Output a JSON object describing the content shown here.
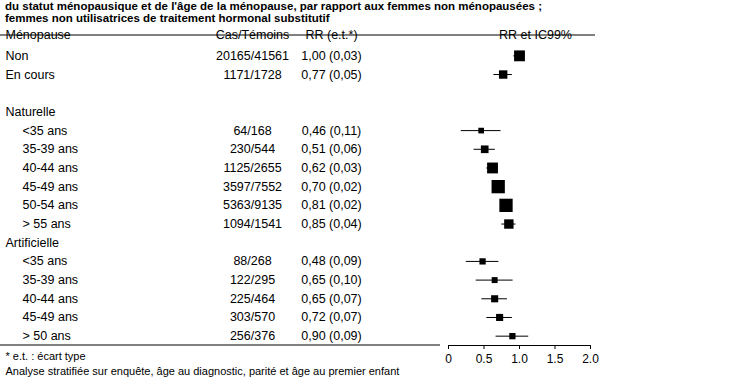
{
  "chart_data": {
    "type": "forest",
    "title": "du statut ménopausique et de l'âge de la ménopause, par rapport aux femmes non ménopausées ;\nfemmes non utilisatrices de traitement hormonal substitutif",
    "columns": [
      "Ménopause",
      "Cas/Témoins",
      "RR (e.t.*)",
      "RR et IC99%"
    ],
    "categories": [
      "Non",
      "En cours",
      null,
      "Naturelle",
      "<35 ans",
      "35-39 ans",
      "40-44 ans",
      "45-49 ans",
      "50-54 ans",
      "> 55 ans",
      "Artificielle",
      "<35 ans",
      "35-39 ans",
      "40-44 ans",
      "45-49 ans",
      "> 50 ans"
    ],
    "cases_controls": [
      "20165/41561",
      "1171/1728",
      null,
      null,
      "64/168",
      "230/544",
      "1125/2655",
      "3597/7552",
      "5363/9135",
      "1094/1541",
      null,
      "88/268",
      "122/295",
      "225/464",
      "303/570",
      "256/376"
    ],
    "values": [
      1.0,
      0.77,
      null,
      null,
      0.46,
      0.51,
      0.62,
      0.7,
      0.81,
      0.85,
      null,
      0.48,
      0.65,
      0.65,
      0.72,
      0.9
    ],
    "se": [
      0.03,
      0.05,
      null,
      null,
      0.11,
      0.06,
      0.03,
      0.02,
      0.02,
      0.04,
      null,
      0.09,
      0.1,
      0.07,
      0.07,
      0.09
    ],
    "value_labels": [
      "1,00 (0,03)",
      "0,77 (0,05)",
      null,
      null,
      "0,46 (0,11)",
      "0,51 (0,06)",
      "0,62 (0,03)",
      "0,70 (0,02)",
      "0,81 (0,02)",
      "0,85 (0,04)",
      null,
      "0,48 (0,09)",
      "0,65 (0,10)",
      "0,65 (0,07)",
      "0,72 (0,07)",
      "0,90 (0,09)"
    ],
    "ci_low": [
      0.92,
      0.64,
      null,
      null,
      0.18,
      0.36,
      0.54,
      0.65,
      0.76,
      0.75,
      null,
      0.25,
      0.39,
      0.47,
      0.54,
      0.67
    ],
    "ci_high": [
      1.08,
      0.9,
      null,
      null,
      0.74,
      0.66,
      0.7,
      0.75,
      0.86,
      0.95,
      null,
      0.71,
      0.91,
      0.83,
      0.9,
      1.13
    ],
    "xlim": [
      0,
      2
    ],
    "xticks": [
      0,
      0.5,
      {
        "value": 1,
        "label": "1.0"
      },
      1.5,
      {
        "value": 2,
        "label": "2.0"
      }
    ],
    "notes": [
      "* e.t. : écart type",
      "Analyse stratifiée sur enquête, âge au diagnostic, parité et âge au premier enfant"
    ],
    "color": "#000000"
  }
}
